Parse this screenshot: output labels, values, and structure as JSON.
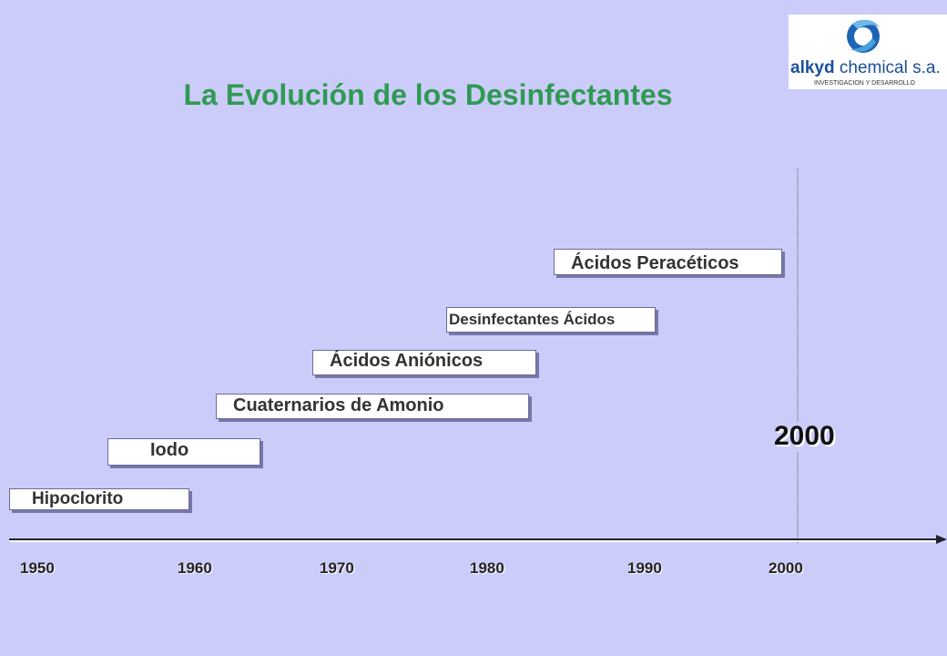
{
  "header": {
    "title": "La Evolución de los Desinfectantes"
  },
  "logo": {
    "brand": "alkyd",
    "name": "chemical s.a.",
    "tagline": "INVESTIGACION Y DESARROLLO"
  },
  "timeline": {
    "items": [
      {
        "label": "Hipoclorito"
      },
      {
        "label": "Iodo"
      },
      {
        "label": "Cuaternarios de Amonio"
      },
      {
        "label": "Ácidos Aniónicos"
      },
      {
        "label": "Desinfectantes Ácidos"
      },
      {
        "label": "Ácidos Peracéticos"
      }
    ],
    "marker": "2000",
    "years": [
      "1950",
      "1960",
      "1970",
      "1980",
      "1990",
      "2000"
    ]
  }
}
